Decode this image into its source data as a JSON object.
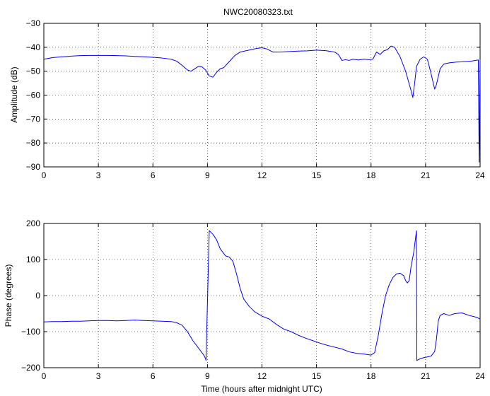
{
  "chart_data": [
    {
      "type": "line",
      "title": "NWC20080323.txt",
      "xlabel": "",
      "ylabel": "Amplitude (dB)",
      "xlim": [
        0,
        24
      ],
      "ylim": [
        -90,
        -30
      ],
      "xticks": [
        0,
        3,
        6,
        9,
        12,
        15,
        18,
        21,
        24
      ],
      "yticks": [
        -90,
        -80,
        -70,
        -60,
        -50,
        -40,
        -30
      ],
      "grid": true,
      "color": "#0000ff",
      "series": [
        {
          "x": [
            0,
            0.5,
            1,
            1.5,
            2,
            2.5,
            3,
            3.5,
            4,
            4.5,
            5,
            5.5,
            6,
            6.5,
            7,
            7.3,
            7.6,
            7.9,
            8.1,
            8.3,
            8.5,
            8.7,
            8.9,
            9.1,
            9.3,
            9.5,
            9.7,
            9.9,
            10.2,
            10.5,
            10.8,
            11.1,
            11.4,
            11.7,
            12,
            12.3,
            12.6,
            13,
            13.5,
            14,
            14.5,
            15,
            15.5,
            16,
            16.2,
            16.4,
            16.6,
            16.8,
            17,
            17.3,
            17.6,
            17.9,
            18.1,
            18.3,
            18.5,
            18.7,
            18.9,
            19.1,
            19.3,
            19.6,
            19.9,
            20.2,
            20.3,
            20.4,
            20.5,
            20.7,
            20.9,
            21.1,
            21.3,
            21.5,
            21.6,
            21.8,
            22,
            22.3,
            22.7,
            23,
            23.5,
            23.9,
            23.95,
            24
          ],
          "y": [
            -45,
            -44.3,
            -44,
            -43.7,
            -43.5,
            -43.4,
            -43.4,
            -43.4,
            -43.5,
            -43.6,
            -43.8,
            -44,
            -44.2,
            -44.5,
            -45,
            -45.8,
            -47.5,
            -49.5,
            -50,
            -49,
            -48,
            -48.2,
            -49.5,
            -52,
            -52.5,
            -50.5,
            -49,
            -48.5,
            -46,
            -43.5,
            -42,
            -41.5,
            -41,
            -40.5,
            -40.2,
            -40.8,
            -42,
            -42,
            -41.8,
            -41.6,
            -41.5,
            -41.2,
            -41.4,
            -42,
            -43,
            -45.5,
            -45.2,
            -45.5,
            -45,
            -45.3,
            -45,
            -45.2,
            -45,
            -42,
            -43,
            -41.5,
            -41,
            -39.5,
            -40,
            -44,
            -50,
            -58,
            -61,
            -55,
            -48,
            -45,
            -44,
            -45,
            -51,
            -57.5,
            -55.5,
            -49,
            -47,
            -46.5,
            -46.2,
            -46.1,
            -45.8,
            -45.3,
            -88,
            -45
          ]
        }
      ]
    },
    {
      "type": "line",
      "title": "",
      "xlabel": "Time (hours after midnight UTC)",
      "ylabel": "Phase (degrees)",
      "xlim": [
        0,
        24
      ],
      "ylim": [
        -200,
        200
      ],
      "xticks": [
        0,
        3,
        6,
        9,
        12,
        15,
        18,
        21,
        24
      ],
      "yticks": [
        -200,
        -100,
        0,
        100,
        200
      ],
      "grid": true,
      "color": "#0000ff",
      "series": [
        {
          "x": [
            0,
            0.5,
            1,
            1.5,
            2,
            2.5,
            3,
            3.5,
            4,
            4.5,
            5,
            5.5,
            6,
            6.5,
            7,
            7.3,
            7.6,
            7.9,
            8.2,
            8.5,
            8.8,
            8.9,
            8.92,
            9.1,
            9.3,
            9.5,
            9.7,
            10,
            10.2,
            10.4,
            10.6,
            10.8,
            11,
            11.3,
            11.6,
            12,
            12.4,
            12.8,
            13.2,
            13.6,
            14,
            14.4,
            14.8,
            15.2,
            15.6,
            16,
            16.4,
            16.8,
            17.2,
            17.6,
            18,
            18.2,
            18.4,
            18.6,
            18.8,
            19,
            19.2,
            19.4,
            19.6,
            19.8,
            19.9,
            20,
            20.1,
            20.2,
            20.35,
            20.5,
            20.52,
            20.7,
            20.9,
            21.1,
            21.3,
            21.5,
            21.6,
            21.7,
            21.8,
            22,
            22.3,
            22.6,
            23,
            23.4,
            23.8,
            24
          ],
          "y": [
            -73,
            -72,
            -72,
            -71,
            -71,
            -70,
            -69,
            -69,
            -70,
            -69,
            -68,
            -69,
            -70,
            -71,
            -72,
            -75,
            -82,
            -100,
            -125,
            -145,
            -165,
            -175,
            -180,
            180,
            170,
            155,
            130,
            110,
            107,
            95,
            60,
            20,
            -10,
            -30,
            -45,
            -57,
            -65,
            -80,
            -93,
            -100,
            -110,
            -118,
            -125,
            -132,
            -138,
            -143,
            -148,
            -156,
            -160,
            -162,
            -165,
            -158,
            -110,
            -50,
            0,
            30,
            50,
            60,
            62,
            55,
            42,
            35,
            42,
            80,
            120,
            180,
            -180,
            -175,
            -172,
            -170,
            -168,
            -155,
            -120,
            -70,
            -55,
            -50,
            -55,
            -50,
            -48,
            -55,
            -60,
            -65
          ]
        }
      ]
    }
  ]
}
